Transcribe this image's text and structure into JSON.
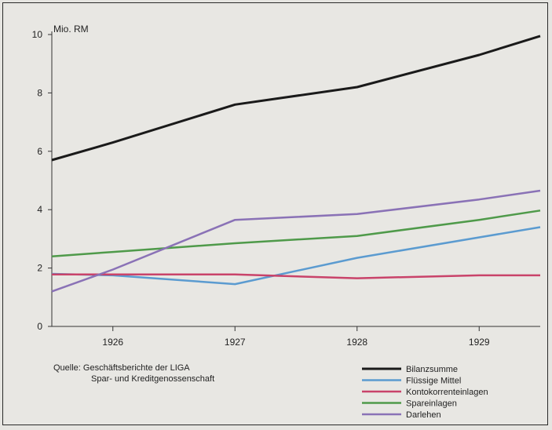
{
  "chart_data": {
    "type": "line",
    "y_unit": "Mio. RM",
    "x_ticks": [
      "1926",
      "1927",
      "1928",
      "1929"
    ],
    "x_range": [
      1925.5,
      1929.5
    ],
    "ylim": [
      0,
      10
    ],
    "y_ticks": [
      0,
      2,
      4,
      6,
      8,
      10
    ],
    "x": [
      1925.5,
      1926,
      1927,
      1928,
      1929,
      1929.5
    ],
    "grid": false,
    "legend_position": "bottom-right",
    "series": [
      {
        "name": "Bilanzsumme",
        "color": "#1a1a1a",
        "values": [
          5.7,
          6.3,
          7.6,
          8.2,
          9.3,
          9.95
        ]
      },
      {
        "name": "Flüssige Mittel",
        "color": "#5b9bd0",
        "values": [
          1.8,
          1.75,
          1.45,
          2.35,
          3.05,
          3.4
        ]
      },
      {
        "name": "Kontokorrenteinlagen",
        "color": "#c9436a",
        "values": [
          1.78,
          1.78,
          1.78,
          1.65,
          1.75,
          1.75
        ]
      },
      {
        "name": "Spareinlagen",
        "color": "#4f9a4a",
        "values": [
          2.4,
          2.55,
          2.85,
          3.1,
          3.65,
          3.97
        ]
      },
      {
        "name": "Darlehen",
        "color": "#8a72b6",
        "values": [
          1.2,
          1.95,
          3.65,
          3.85,
          4.35,
          4.65
        ]
      }
    ],
    "source_lines": [
      "Quelle:  Geschäftsberichte der LIGA",
      "Spar- und Kreditgenossenschaft"
    ]
  }
}
